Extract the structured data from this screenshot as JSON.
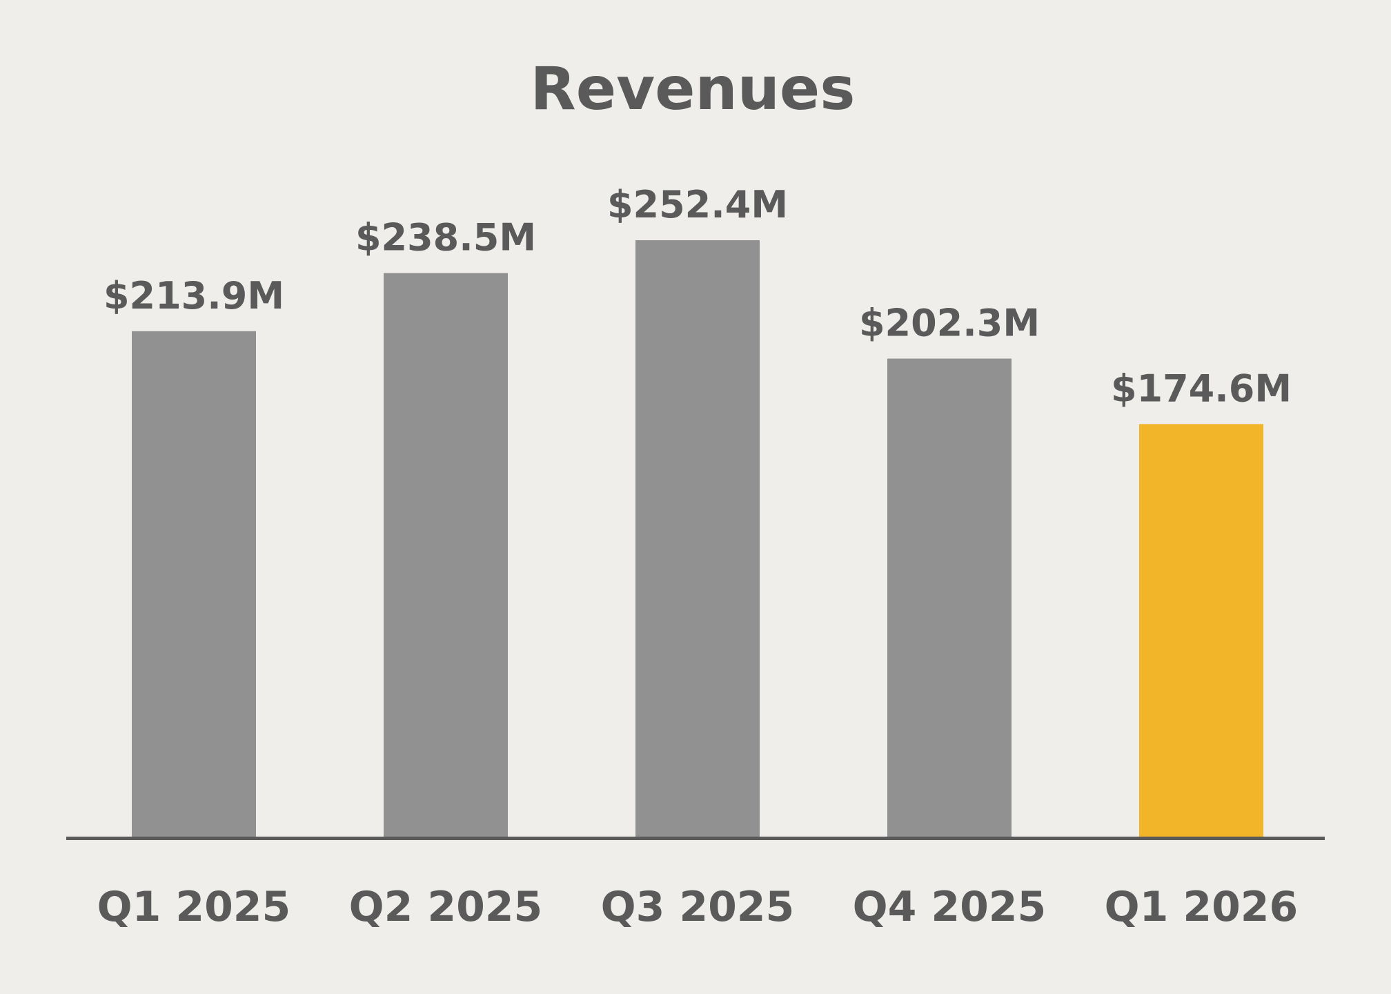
{
  "chart_data": {
    "type": "bar",
    "title": "Revenues",
    "xlabel": "",
    "ylabel": "",
    "categories": [
      "Q1 2025",
      "Q2 2025",
      "Q3 2025",
      "Q4 2025",
      "Q1 2026"
    ],
    "values": [
      213.9,
      238.5,
      252.4,
      202.3,
      174.6
    ],
    "value_labels": [
      "$213.9M",
      "$238.5M",
      "$252.4M",
      "$202.3M",
      "$174.6M"
    ],
    "ylim": [
      0,
      252.4
    ],
    "grid": false,
    "legend": "none",
    "colors": {
      "default_bar": "#919191",
      "highlight_bar": "#f2b52a",
      "highlight_index": 4,
      "text": "#5a5a5a",
      "axis": "#5a5a5a",
      "background": "#efeeeb"
    }
  }
}
